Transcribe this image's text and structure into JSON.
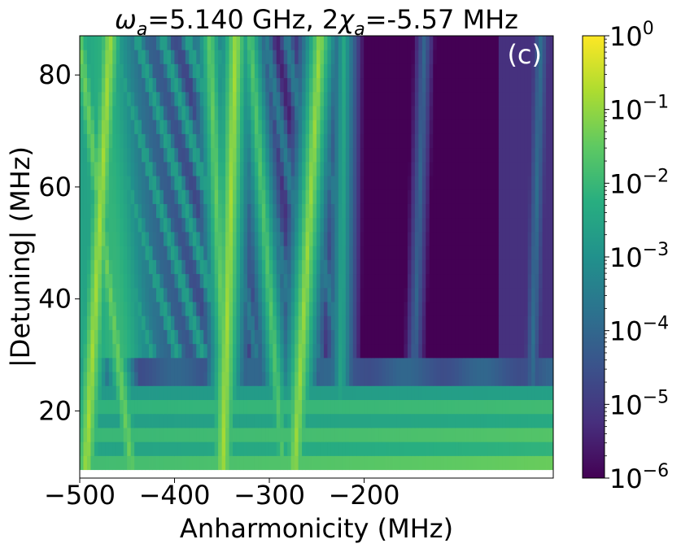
{
  "chart_data": {
    "type": "heatmap",
    "title": "ω_a=5.140 GHz, 2χ_a=-5.57 MHz",
    "title_parts": {
      "omega": "ω",
      "omega_sub": "a",
      "omega_val": "=5.140 GHz, 2",
      "chi": "χ",
      "chi_sub": "a",
      "chi_val": "=-5.57 MHz"
    },
    "panel_label": "(c)",
    "xlabel": "Anharmonicity (MHz)",
    "ylabel": "|Detuning| (MHz)",
    "xlim": [
      -500,
      -0.5
    ],
    "ylim": [
      8,
      87
    ],
    "x_ticks": [
      -500,
      -400,
      -300,
      -200
    ],
    "x_tick_labels": [
      "−500",
      "−400",
      "−300",
      "−200"
    ],
    "y_ticks": [
      20,
      40,
      60,
      80
    ],
    "y_tick_labels": [
      "20",
      "40",
      "60",
      "80"
    ],
    "colorbar": {
      "scale": "log",
      "range": [
        1e-06,
        1
      ],
      "colormap": "viridis",
      "ticks": [
        {
          "base": "10",
          "exp": "0"
        },
        {
          "base": "10",
          "exp": "−1"
        },
        {
          "base": "10",
          "exp": "−2"
        },
        {
          "base": "10",
          "exp": "−3"
        },
        {
          "base": "10",
          "exp": "−4"
        },
        {
          "base": "10",
          "exp": "−5"
        },
        {
          "base": "10",
          "exp": "−6"
        }
      ]
    },
    "heatmap_model": {
      "rows_y_start": 9.5,
      "rows_y_step": 2.5,
      "row_count": 31,
      "threshold_detuning": 29.5,
      "resonance_lines": [
        {
          "x_at_bottom": -493,
          "slope_mhz_per_mhz": 0.33,
          "peak_log": -0.8
        },
        {
          "x_at_bottom": -446,
          "slope_mhz_per_mhz": -0.72,
          "peak_log": -1.3
        },
        {
          "x_at_bottom": -349,
          "slope_mhz_per_mhz": 0.18,
          "peak_log": -0.8
        },
        {
          "x_at_bottom": -344,
          "slope_mhz_per_mhz": -0.25,
          "peak_log": -1.4
        },
        {
          "x_at_bottom": -273,
          "slope_mhz_per_mhz": 0.35,
          "peak_log": -0.9
        },
        {
          "x_at_bottom": -286,
          "slope_mhz_per_mhz": -0.45,
          "peak_log": -1.6
        },
        {
          "x_at_bottom": -225,
          "slope_mhz_per_mhz": 0.05,
          "peak_log": -2.4
        },
        {
          "x_at_bottom": -150,
          "slope_mhz_per_mhz": 0.18,
          "peak_log": -4.0
        },
        {
          "x_at_bottom": -25,
          "slope_mhz_per_mhz": 0.15,
          "peak_log": -3.8
        }
      ]
    }
  }
}
